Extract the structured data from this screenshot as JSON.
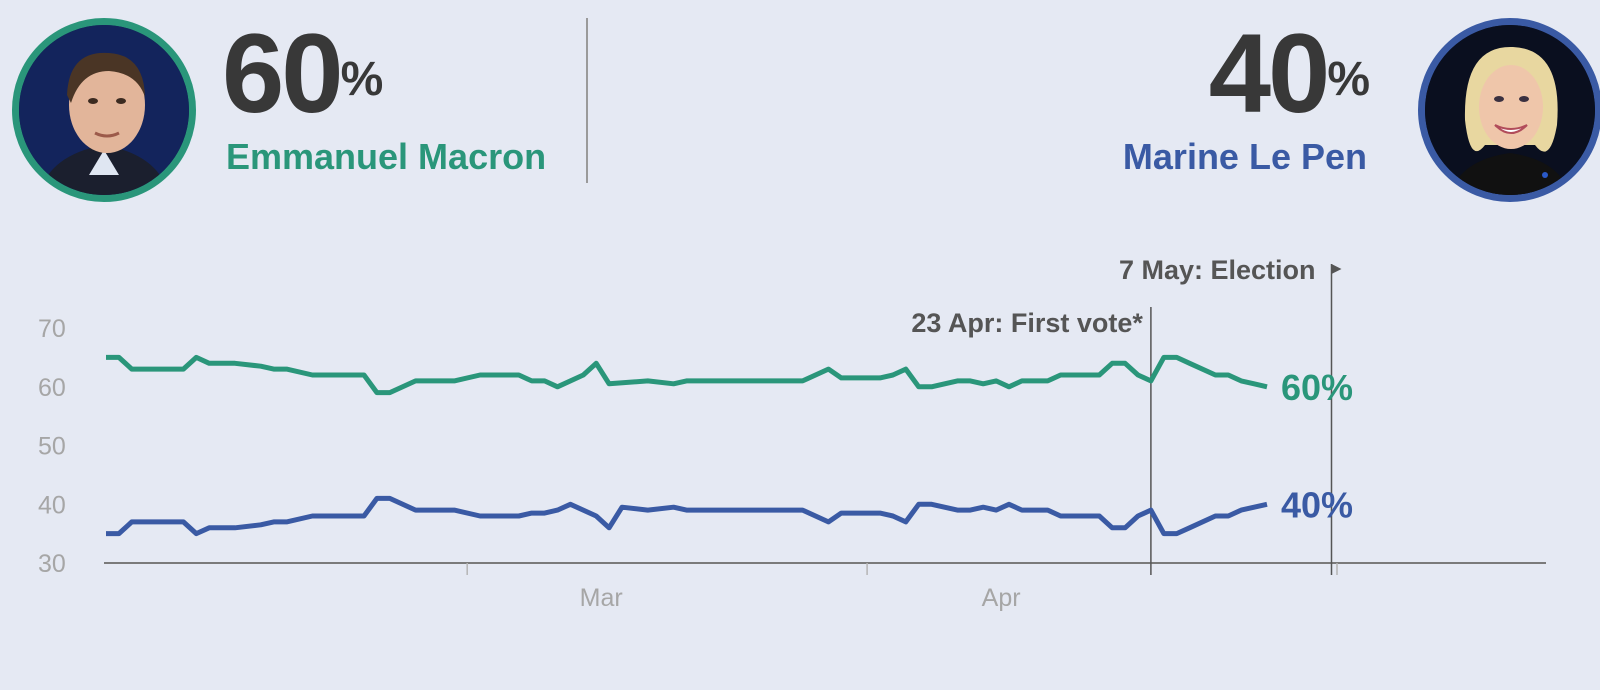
{
  "candidates": [
    {
      "name": "Emmanuel Macron",
      "pct": "60",
      "pct_sign": "%",
      "color": "#2a967a",
      "avatar_icon": "macron-portrait"
    },
    {
      "name": "Marine Le Pen",
      "pct": "40",
      "pct_sign": "%",
      "color": "#3a5aa4",
      "avatar_icon": "lepen-portrait"
    }
  ],
  "chart_data": {
    "type": "line",
    "ylim": [
      30,
      70
    ],
    "y_ticks": [
      "70",
      "60",
      "50",
      "40",
      "30"
    ],
    "x_ticks": [
      {
        "label": "Mar",
        "date": "2017-03-01"
      },
      {
        "label": "Apr",
        "date": "2017-04-01"
      }
    ],
    "x_range": [
      "2017-02-01",
      "2017-05-15"
    ],
    "annotations": [
      {
        "label": "23 Apr: First vote*",
        "date": "2017-04-23"
      },
      {
        "label": "7 May: Election",
        "date": "2017-05-07"
      }
    ],
    "series": [
      {
        "name": "Emmanuel Macron",
        "color": "#2a967a",
        "end_label": "60%",
        "points": [
          [
            "2017-02-01",
            65
          ],
          [
            "2017-02-02",
            65
          ],
          [
            "2017-02-03",
            63
          ],
          [
            "2017-02-05",
            63
          ],
          [
            "2017-02-07",
            63
          ],
          [
            "2017-02-08",
            65
          ],
          [
            "2017-02-09",
            64
          ],
          [
            "2017-02-11",
            64
          ],
          [
            "2017-02-13",
            63.5
          ],
          [
            "2017-02-14",
            63
          ],
          [
            "2017-02-15",
            63
          ],
          [
            "2017-02-17",
            62
          ],
          [
            "2017-02-20",
            62
          ],
          [
            "2017-02-21",
            62
          ],
          [
            "2017-02-22",
            59
          ],
          [
            "2017-02-23",
            59
          ],
          [
            "2017-02-25",
            61
          ],
          [
            "2017-02-27",
            61
          ],
          [
            "2017-02-28",
            61
          ],
          [
            "2017-03-02",
            62
          ],
          [
            "2017-03-05",
            62
          ],
          [
            "2017-03-06",
            61
          ],
          [
            "2017-03-07",
            61
          ],
          [
            "2017-03-08",
            60
          ],
          [
            "2017-03-10",
            62
          ],
          [
            "2017-03-11",
            64
          ],
          [
            "2017-03-12",
            60.5
          ],
          [
            "2017-03-15",
            61
          ],
          [
            "2017-03-17",
            60.5
          ],
          [
            "2017-03-18",
            61
          ],
          [
            "2017-03-22",
            61
          ],
          [
            "2017-03-27",
            61
          ],
          [
            "2017-03-29",
            63
          ],
          [
            "2017-03-30",
            61.5
          ],
          [
            "2017-04-02",
            61.5
          ],
          [
            "2017-04-03",
            62
          ],
          [
            "2017-04-04",
            63
          ],
          [
            "2017-04-05",
            60
          ],
          [
            "2017-04-06",
            60
          ],
          [
            "2017-04-08",
            61
          ],
          [
            "2017-04-09",
            61
          ],
          [
            "2017-04-10",
            60.5
          ],
          [
            "2017-04-11",
            61
          ],
          [
            "2017-04-12",
            60
          ],
          [
            "2017-04-13",
            61
          ],
          [
            "2017-04-14",
            61
          ],
          [
            "2017-04-15",
            61
          ],
          [
            "2017-04-16",
            62
          ],
          [
            "2017-04-18",
            62
          ],
          [
            "2017-04-19",
            62
          ],
          [
            "2017-04-20",
            64
          ],
          [
            "2017-04-21",
            64
          ],
          [
            "2017-04-22",
            62
          ],
          [
            "2017-04-23",
            61
          ],
          [
            "2017-04-24",
            65
          ],
          [
            "2017-04-25",
            65
          ],
          [
            "2017-04-26",
            64
          ],
          [
            "2017-04-28",
            62
          ],
          [
            "2017-04-29",
            62
          ],
          [
            "2017-04-30",
            61
          ],
          [
            "2017-05-01",
            60.5
          ],
          [
            "2017-05-02",
            60
          ]
        ]
      },
      {
        "name": "Marine Le Pen",
        "color": "#3a5aa4",
        "end_label": "40%",
        "points": [
          [
            "2017-02-01",
            35
          ],
          [
            "2017-02-02",
            35
          ],
          [
            "2017-02-03",
            37
          ],
          [
            "2017-02-05",
            37
          ],
          [
            "2017-02-07",
            37
          ],
          [
            "2017-02-08",
            35
          ],
          [
            "2017-02-09",
            36
          ],
          [
            "2017-02-11",
            36
          ],
          [
            "2017-02-13",
            36.5
          ],
          [
            "2017-02-14",
            37
          ],
          [
            "2017-02-15",
            37
          ],
          [
            "2017-02-17",
            38
          ],
          [
            "2017-02-20",
            38
          ],
          [
            "2017-02-21",
            38
          ],
          [
            "2017-02-22",
            41
          ],
          [
            "2017-02-23",
            41
          ],
          [
            "2017-02-25",
            39
          ],
          [
            "2017-02-27",
            39
          ],
          [
            "2017-02-28",
            39
          ],
          [
            "2017-03-02",
            38
          ],
          [
            "2017-03-05",
            38
          ],
          [
            "2017-03-06",
            38.5
          ],
          [
            "2017-03-07",
            38.5
          ],
          [
            "2017-03-08",
            39
          ],
          [
            "2017-03-09",
            40
          ],
          [
            "2017-03-11",
            38
          ],
          [
            "2017-03-12",
            36
          ],
          [
            "2017-03-13",
            39.5
          ],
          [
            "2017-03-15",
            39
          ],
          [
            "2017-03-17",
            39.5
          ],
          [
            "2017-03-18",
            39
          ],
          [
            "2017-03-22",
            39
          ],
          [
            "2017-03-27",
            39
          ],
          [
            "2017-03-29",
            37
          ],
          [
            "2017-03-30",
            38.5
          ],
          [
            "2017-04-02",
            38.5
          ],
          [
            "2017-04-03",
            38
          ],
          [
            "2017-04-04",
            37
          ],
          [
            "2017-04-05",
            40
          ],
          [
            "2017-04-06",
            40
          ],
          [
            "2017-04-08",
            39
          ],
          [
            "2017-04-09",
            39
          ],
          [
            "2017-04-10",
            39.5
          ],
          [
            "2017-04-11",
            39
          ],
          [
            "2017-04-12",
            40
          ],
          [
            "2017-04-13",
            39
          ],
          [
            "2017-04-15",
            39
          ],
          [
            "2017-04-16",
            38
          ],
          [
            "2017-04-18",
            38
          ],
          [
            "2017-04-19",
            38
          ],
          [
            "2017-04-20",
            36
          ],
          [
            "2017-04-21",
            36
          ],
          [
            "2017-04-22",
            38
          ],
          [
            "2017-04-23",
            39
          ],
          [
            "2017-04-24",
            35
          ],
          [
            "2017-04-25",
            35
          ],
          [
            "2017-04-26",
            36
          ],
          [
            "2017-04-28",
            38
          ],
          [
            "2017-04-29",
            38
          ],
          [
            "2017-04-30",
            39
          ],
          [
            "2017-05-01",
            39.5
          ],
          [
            "2017-05-02",
            40
          ]
        ]
      }
    ]
  }
}
